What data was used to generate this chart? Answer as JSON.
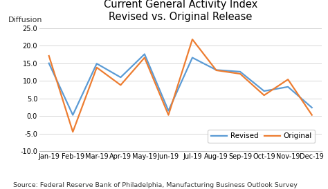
{
  "title": "Current General Activity Index\nRevised vs. Original Release",
  "ylabel": "Diffusion",
  "source": "Source: Federal Reserve Bank of Philadelphia, Manufacturing Business Outlook Survey",
  "categories": [
    "Jan-19",
    "Feb-19",
    "Mar-19",
    "Apr-19",
    "May-19",
    "Jun-19",
    "Jul-19",
    "Aug-19",
    "Sep-19",
    "Oct-19",
    "Nov-19",
    "Dec-19"
  ],
  "revised": [
    15.0,
    0.3,
    14.9,
    11.0,
    17.6,
    1.5,
    16.6,
    13.1,
    12.6,
    7.1,
    8.3,
    2.4
  ],
  "original": [
    17.1,
    -4.5,
    13.8,
    8.8,
    16.6,
    0.3,
    21.8,
    13.0,
    12.0,
    5.9,
    10.4,
    0.3
  ],
  "revised_color": "#5b9bd5",
  "original_color": "#ed7d31",
  "ylim": [
    -10.0,
    26.0
  ],
  "yticks": [
    -10.0,
    -5.0,
    0.0,
    5.0,
    10.0,
    15.0,
    20.0,
    25.0
  ],
  "background_color": "#ffffff",
  "title_fontsize": 10.5,
  "label_fontsize": 8,
  "tick_fontsize": 7,
  "source_fontsize": 6.8,
  "legend_fontsize": 7.5,
  "line_width": 1.6
}
